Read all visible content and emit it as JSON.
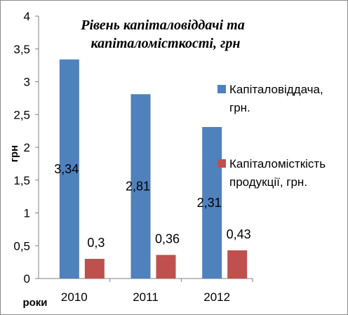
{
  "chart_data": {
    "type": "bar",
    "title_lines": [
      "Рівень капіталовіддачі та",
      "капіталомісткості, грн"
    ],
    "xlabel": "роки",
    "ylabel": "грн",
    "categories": [
      "2010",
      "2011",
      "2012"
    ],
    "ylim": [
      0,
      4
    ],
    "yticks": [
      "0",
      "0,5",
      "1",
      "1,5",
      "2",
      "2,5",
      "3",
      "3,5",
      "4"
    ],
    "grid": false,
    "legend_position": "right",
    "series": [
      {
        "name_lines": [
          "Капіталовіддача,",
          "грн."
        ],
        "color": "#4F81BD",
        "values": [
          3.34,
          2.81,
          2.31
        ],
        "labels": [
          "3,34",
          "2,81",
          "2,31"
        ]
      },
      {
        "name_lines": [
          "Капіталомісткість",
          "продукції, грн."
        ],
        "color": "#C0504D",
        "values": [
          0.3,
          0.36,
          0.43
        ],
        "labels": [
          "0,3",
          "0,36",
          "0,43"
        ]
      }
    ]
  }
}
